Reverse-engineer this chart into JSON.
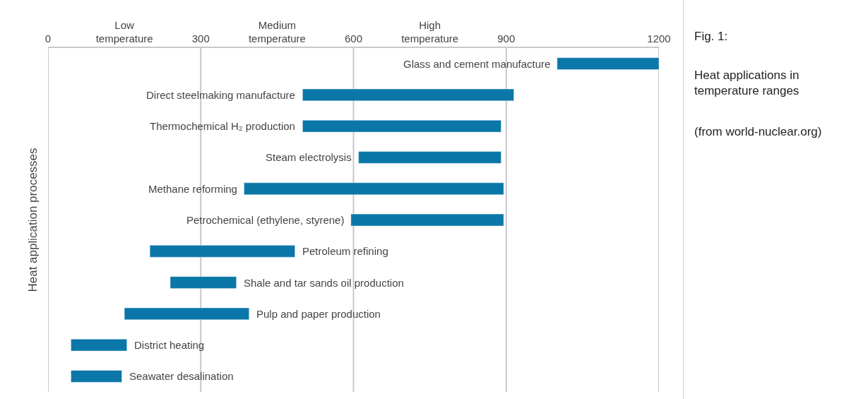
{
  "chart_data": {
    "type": "bar",
    "orientation": "horizontal",
    "ylabel": "Heat application processes",
    "categories": [
      "Glass and cement manufacture",
      "Direct steelmaking manufacture",
      "Thermochemical H₂ production",
      "Steam electrolysis",
      "Methane reforming",
      "Petrochemical (ethylene, styrene)",
      "Petroleum refining",
      "Shale and tar sands oil production",
      "Pulp and paper production",
      "District heating",
      "Seawater desalination"
    ],
    "base": [
      1000,
      500,
      500,
      610,
      385,
      595,
      200,
      240,
      150,
      45,
      45
    ],
    "values": [
      200,
      415,
      390,
      280,
      510,
      300,
      285,
      130,
      245,
      110,
      100
    ],
    "color": "#0a77a8",
    "xlim": [
      0,
      1200
    ],
    "xticks": [
      0,
      {
        "value": 150,
        "label": "Low\ntemperature"
      },
      300,
      {
        "value": 450,
        "label": "Medium\ntemperature"
      },
      600,
      {
        "value": 750,
        "label": "High\ntemperature"
      },
      900,
      1200
    ],
    "grid": "x",
    "tick_labels": "x",
    "annotations": [
      "Fig. 1:",
      "Heat applications in temperature ranges",
      "(from world-nuclear.org)"
    ]
  }
}
